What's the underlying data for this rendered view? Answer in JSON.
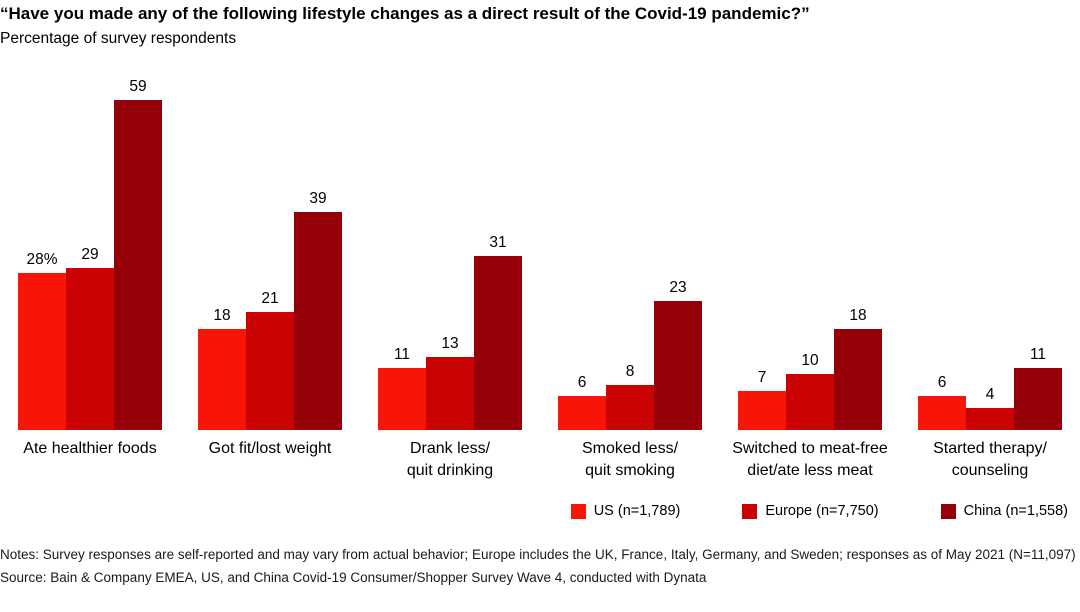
{
  "header": {
    "title": "“Have you made any of the following lifestyle changes as a direct result of the Covid-19 pandemic?”",
    "subtitle": "Percentage of survey respondents"
  },
  "chart_data": {
    "type": "bar",
    "title": "Have you made any of the following lifestyle changes as a direct result of the Covid-19 pandemic?",
    "subtitle": "Percentage of survey respondents",
    "categories": [
      "Ate healthier foods",
      "Got fit/lost weight",
      "Drank less/\nquit drinking",
      "Smoked less/\nquit smoking",
      "Switched to meat-free\ndiet/ate less meat",
      "Started therapy/\ncounseling"
    ],
    "series": [
      {
        "name": "US (n=1,789)",
        "color": "#f91408",
        "values": [
          28,
          18,
          11,
          6,
          7,
          6
        ],
        "labels": [
          "28%",
          "18",
          "11",
          "6",
          "7",
          "6"
        ]
      },
      {
        "name": "Europe (n=7,750)",
        "color": "#cb0204",
        "values": [
          29,
          21,
          13,
          8,
          10,
          4
        ],
        "labels": [
          "29",
          "21",
          "13",
          "8",
          "10",
          "4"
        ]
      },
      {
        "name": "China (n=1,558)",
        "color": "#950009",
        "values": [
          59,
          39,
          31,
          23,
          18,
          11
        ],
        "labels": [
          "59",
          "39",
          "31",
          "23",
          "18",
          "11"
        ]
      }
    ],
    "ylim": [
      0,
      65
    ],
    "grid": false,
    "axis_visible": false,
    "legend_position": "bottom-right"
  },
  "footer": {
    "notes": "Notes: Survey responses are self-reported and may vary from actual behavior; Europe includes the UK, France, Italy, Germany, and Sweden; responses as of May 2021 (N=11,097)",
    "source": "Source: Bain & Company EMEA, US, and China Covid-19 Consumer/Shopper Survey Wave 4, conducted with Dynata"
  }
}
